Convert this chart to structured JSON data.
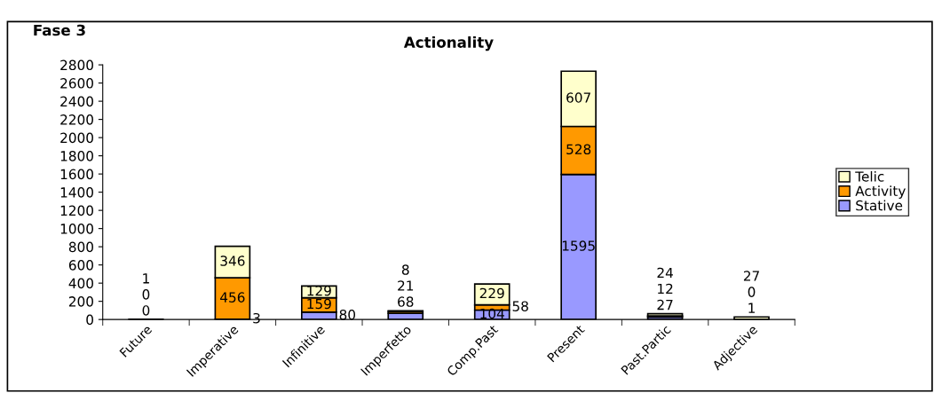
{
  "chart_data": {
    "type": "bar",
    "title": "Actionality",
    "annotations": [
      "Fase 3"
    ],
    "categories": [
      "Future",
      "Imperative",
      "Infinitive",
      "Imperfetto",
      "Comp.Past",
      "Present",
      "Past.Partic",
      "Adjective"
    ],
    "series": [
      {
        "name": "Stative",
        "color": "#9999ff",
        "values": [
          0,
          3,
          80,
          68,
          104,
          1595,
          27,
          1
        ]
      },
      {
        "name": "Activity",
        "color": "#ff9900",
        "values": [
          0,
          456,
          159,
          21,
          58,
          528,
          12,
          0
        ]
      },
      {
        "name": "Telic",
        "color": "#ffffcc",
        "values": [
          1,
          346,
          129,
          8,
          229,
          607,
          24,
          27
        ]
      }
    ],
    "stacked": true,
    "data_labels": true,
    "ylim": [
      0,
      2800
    ],
    "yticks": [
      0,
      200,
      400,
      600,
      800,
      1000,
      1200,
      1400,
      1600,
      1800,
      2000,
      2200,
      2400,
      2600,
      2800
    ],
    "grid": false,
    "legend": "right"
  }
}
